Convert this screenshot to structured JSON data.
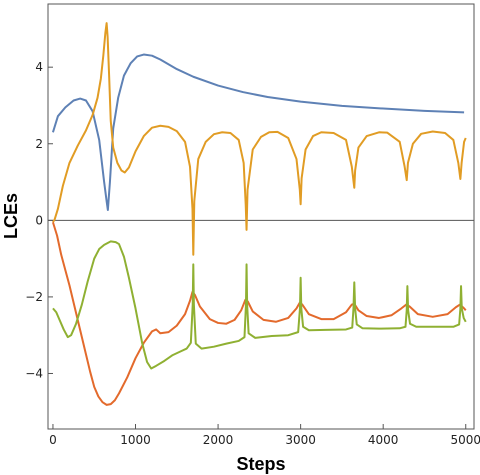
{
  "chart_data": {
    "type": "line",
    "title": "",
    "xlabel": "Steps",
    "ylabel": "LCEs",
    "xlim": [
      -60,
      5100
    ],
    "ylim": [
      -5.45,
      5.65
    ],
    "xticks": [
      0,
      1000,
      2000,
      3000,
      4000,
      5000
    ],
    "yticks": [
      -4,
      -2,
      0,
      2,
      4
    ],
    "zero_line": true,
    "frame": true,
    "series": [
      {
        "color": "#5e81b5",
        "points": [
          [
            0,
            2.3
          ],
          [
            60,
            2.72
          ],
          [
            150,
            2.95
          ],
          [
            250,
            3.13
          ],
          [
            330,
            3.18
          ],
          [
            400,
            3.13
          ],
          [
            480,
            2.85
          ],
          [
            560,
            2.1
          ],
          [
            620,
            1.0
          ],
          [
            650,
            0.5
          ],
          [
            665,
            0.27
          ],
          [
            690,
            1.0
          ],
          [
            730,
            2.4
          ],
          [
            790,
            3.2
          ],
          [
            860,
            3.78
          ],
          [
            940,
            4.1
          ],
          [
            1020,
            4.28
          ],
          [
            1100,
            4.33
          ],
          [
            1200,
            4.3
          ],
          [
            1300,
            4.2
          ],
          [
            1500,
            3.95
          ],
          [
            1700,
            3.75
          ],
          [
            2000,
            3.52
          ],
          [
            2300,
            3.35
          ],
          [
            2600,
            3.22
          ],
          [
            3000,
            3.1
          ],
          [
            3500,
            2.99
          ],
          [
            4000,
            2.92
          ],
          [
            4500,
            2.86
          ],
          [
            4980,
            2.82
          ]
        ]
      },
      {
        "color": "#e19c24",
        "points": [
          [
            0,
            -0.05
          ],
          [
            20,
            0.02
          ],
          [
            60,
            0.3
          ],
          [
            120,
            0.9
          ],
          [
            200,
            1.5
          ],
          [
            300,
            1.95
          ],
          [
            400,
            2.35
          ],
          [
            480,
            2.75
          ],
          [
            540,
            3.2
          ],
          [
            580,
            3.7
          ],
          [
            610,
            4.3
          ],
          [
            635,
            4.9
          ],
          [
            650,
            5.15
          ],
          [
            662,
            4.8
          ],
          [
            680,
            3.8
          ],
          [
            700,
            2.6
          ],
          [
            730,
            1.9
          ],
          [
            780,
            1.5
          ],
          [
            830,
            1.3
          ],
          [
            870,
            1.25
          ],
          [
            920,
            1.38
          ],
          [
            1000,
            1.8
          ],
          [
            1100,
            2.2
          ],
          [
            1200,
            2.42
          ],
          [
            1300,
            2.47
          ],
          [
            1400,
            2.44
          ],
          [
            1500,
            2.33
          ],
          [
            1600,
            2.05
          ],
          [
            1660,
            1.4
          ],
          [
            1690,
            0.3
          ],
          [
            1700,
            -0.9
          ],
          [
            1712,
            0.5
          ],
          [
            1760,
            1.6
          ],
          [
            1850,
            2.05
          ],
          [
            1950,
            2.25
          ],
          [
            2050,
            2.3
          ],
          [
            2150,
            2.28
          ],
          [
            2250,
            2.1
          ],
          [
            2310,
            1.5
          ],
          [
            2335,
            0.4
          ],
          [
            2345,
            -0.25
          ],
          [
            2357,
            0.8
          ],
          [
            2420,
            1.85
          ],
          [
            2520,
            2.18
          ],
          [
            2620,
            2.3
          ],
          [
            2720,
            2.31
          ],
          [
            2850,
            2.15
          ],
          [
            2950,
            1.6
          ],
          [
            2990,
            0.8
          ],
          [
            3000,
            0.42
          ],
          [
            3012,
            1.1
          ],
          [
            3060,
            1.85
          ],
          [
            3150,
            2.2
          ],
          [
            3250,
            2.3
          ],
          [
            3400,
            2.28
          ],
          [
            3550,
            2.1
          ],
          [
            3620,
            1.4
          ],
          [
            3650,
            0.85
          ],
          [
            3660,
            1.3
          ],
          [
            3700,
            1.9
          ],
          [
            3800,
            2.2
          ],
          [
            3950,
            2.3
          ],
          [
            4050,
            2.29
          ],
          [
            4200,
            2.05
          ],
          [
            4260,
            1.4
          ],
          [
            4285,
            1.05
          ],
          [
            4300,
            1.5
          ],
          [
            4360,
            2.0
          ],
          [
            4460,
            2.26
          ],
          [
            4600,
            2.32
          ],
          [
            4750,
            2.28
          ],
          [
            4850,
            2.1
          ],
          [
            4910,
            1.5
          ],
          [
            4935,
            1.08
          ],
          [
            4950,
            1.5
          ],
          [
            4980,
            2.05
          ],
          [
            5000,
            2.15
          ]
        ]
      },
      {
        "color": "#e36a2c",
        "points": [
          [
            0,
            -0.05
          ],
          [
            50,
            -0.4
          ],
          [
            100,
            -0.9
          ],
          [
            150,
            -1.3
          ],
          [
            200,
            -1.7
          ],
          [
            250,
            -2.15
          ],
          [
            300,
            -2.6
          ],
          [
            350,
            -3.05
          ],
          [
            400,
            -3.5
          ],
          [
            450,
            -3.95
          ],
          [
            500,
            -4.35
          ],
          [
            550,
            -4.6
          ],
          [
            600,
            -4.75
          ],
          [
            650,
            -4.82
          ],
          [
            700,
            -4.8
          ],
          [
            750,
            -4.7
          ],
          [
            800,
            -4.52
          ],
          [
            900,
            -4.1
          ],
          [
            1000,
            -3.6
          ],
          [
            1100,
            -3.2
          ],
          [
            1200,
            -2.9
          ],
          [
            1250,
            -2.85
          ],
          [
            1300,
            -2.95
          ],
          [
            1400,
            -2.92
          ],
          [
            1500,
            -2.75
          ],
          [
            1600,
            -2.45
          ],
          [
            1660,
            -2.1
          ],
          [
            1690,
            -1.87
          ],
          [
            1720,
            -1.95
          ],
          [
            1780,
            -2.25
          ],
          [
            1900,
            -2.58
          ],
          [
            2000,
            -2.68
          ],
          [
            2100,
            -2.7
          ],
          [
            2200,
            -2.6
          ],
          [
            2280,
            -2.35
          ],
          [
            2330,
            -2.08
          ],
          [
            2360,
            -2.12
          ],
          [
            2420,
            -2.38
          ],
          [
            2550,
            -2.6
          ],
          [
            2700,
            -2.65
          ],
          [
            2850,
            -2.55
          ],
          [
            2950,
            -2.3
          ],
          [
            2990,
            -2.15
          ],
          [
            3020,
            -2.2
          ],
          [
            3100,
            -2.45
          ],
          [
            3250,
            -2.58
          ],
          [
            3400,
            -2.58
          ],
          [
            3550,
            -2.4
          ],
          [
            3620,
            -2.2
          ],
          [
            3650,
            -2.18
          ],
          [
            3700,
            -2.35
          ],
          [
            3800,
            -2.5
          ],
          [
            3950,
            -2.55
          ],
          [
            4100,
            -2.48
          ],
          [
            4220,
            -2.3
          ],
          [
            4280,
            -2.2
          ],
          [
            4320,
            -2.25
          ],
          [
            4420,
            -2.45
          ],
          [
            4600,
            -2.52
          ],
          [
            4780,
            -2.45
          ],
          [
            4880,
            -2.27
          ],
          [
            4930,
            -2.2
          ],
          [
            4980,
            -2.3
          ],
          [
            5000,
            -2.35
          ]
        ]
      },
      {
        "color": "#8fb032",
        "points": [
          [
            0,
            -2.3
          ],
          [
            40,
            -2.4
          ],
          [
            80,
            -2.6
          ],
          [
            130,
            -2.85
          ],
          [
            180,
            -3.05
          ],
          [
            220,
            -3.0
          ],
          [
            280,
            -2.7
          ],
          [
            350,
            -2.2
          ],
          [
            420,
            -1.6
          ],
          [
            500,
            -1.0
          ],
          [
            560,
            -0.75
          ],
          [
            620,
            -0.64
          ],
          [
            700,
            -0.55
          ],
          [
            760,
            -0.57
          ],
          [
            800,
            -0.62
          ],
          [
            860,
            -0.95
          ],
          [
            920,
            -1.5
          ],
          [
            1000,
            -2.3
          ],
          [
            1080,
            -3.2
          ],
          [
            1140,
            -3.7
          ],
          [
            1190,
            -3.87
          ],
          [
            1250,
            -3.8
          ],
          [
            1350,
            -3.67
          ],
          [
            1450,
            -3.52
          ],
          [
            1550,
            -3.42
          ],
          [
            1620,
            -3.35
          ],
          [
            1670,
            -3.2
          ],
          [
            1693,
            -2.2
          ],
          [
            1700,
            -1.15
          ],
          [
            1707,
            -2.2
          ],
          [
            1730,
            -3.22
          ],
          [
            1800,
            -3.35
          ],
          [
            1950,
            -3.3
          ],
          [
            2100,
            -3.22
          ],
          [
            2250,
            -3.15
          ],
          [
            2320,
            -3.05
          ],
          [
            2338,
            -2.2
          ],
          [
            2345,
            -1.15
          ],
          [
            2352,
            -2.2
          ],
          [
            2370,
            -2.95
          ],
          [
            2450,
            -3.07
          ],
          [
            2650,
            -3.02
          ],
          [
            2850,
            -3.0
          ],
          [
            2970,
            -2.92
          ],
          [
            2992,
            -2.3
          ],
          [
            3000,
            -1.5
          ],
          [
            3008,
            -2.3
          ],
          [
            3030,
            -2.78
          ],
          [
            3100,
            -2.87
          ],
          [
            3300,
            -2.86
          ],
          [
            3550,
            -2.85
          ],
          [
            3625,
            -2.8
          ],
          [
            3640,
            -2.3
          ],
          [
            3650,
            -1.62
          ],
          [
            3660,
            -2.3
          ],
          [
            3680,
            -2.72
          ],
          [
            3750,
            -2.82
          ],
          [
            3950,
            -2.83
          ],
          [
            4200,
            -2.82
          ],
          [
            4270,
            -2.78
          ],
          [
            4285,
            -2.35
          ],
          [
            4293,
            -1.72
          ],
          [
            4302,
            -2.35
          ],
          [
            4325,
            -2.7
          ],
          [
            4400,
            -2.78
          ],
          [
            4600,
            -2.78
          ],
          [
            4850,
            -2.78
          ],
          [
            4920,
            -2.72
          ],
          [
            4935,
            -2.3
          ],
          [
            4943,
            -1.72
          ],
          [
            4952,
            -2.3
          ],
          [
            4975,
            -2.55
          ],
          [
            5000,
            -2.65
          ]
        ]
      }
    ]
  }
}
